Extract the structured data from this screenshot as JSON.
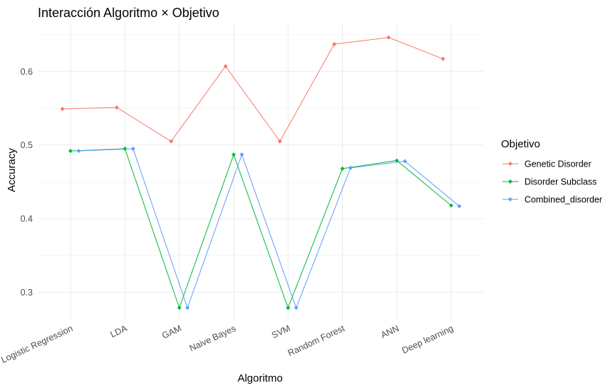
{
  "chart_data": {
    "type": "line",
    "title": "Interacción Algoritmo × Objetivo",
    "xlabel": "Algoritmo",
    "ylabel": "Accuracy",
    "categories": [
      "Logistic Regression",
      "LDA",
      "GAM",
      "Naive Bayes",
      "SVM",
      "Random Forest",
      "ANN",
      "Deep learning"
    ],
    "ylim": [
      0.262,
      0.665
    ],
    "yticks": [
      0.3,
      0.4,
      0.5,
      0.6
    ],
    "ytick_labels": [
      "0.3",
      "0.4",
      "0.5",
      "0.6"
    ],
    "grid": true,
    "legend": {
      "title": "Objetivo",
      "placement": "right"
    },
    "dodge": [
      -0.15,
      0,
      0.15
    ],
    "series": [
      {
        "name": "Genetic Disorder",
        "color": "#F8766D",
        "values": [
          0.549,
          0.551,
          0.505,
          0.607,
          0.505,
          0.637,
          0.646,
          0.617
        ]
      },
      {
        "name": "Disorder Subclass",
        "color": "#00BA38",
        "values": [
          0.492,
          0.495,
          0.279,
          0.487,
          0.279,
          0.468,
          0.479,
          0.418
        ]
      },
      {
        "name": "Combined_disorder",
        "color": "#619CFF",
        "values": [
          0.492,
          0.495,
          0.279,
          0.487,
          0.279,
          0.469,
          0.478,
          0.417
        ]
      }
    ]
  }
}
